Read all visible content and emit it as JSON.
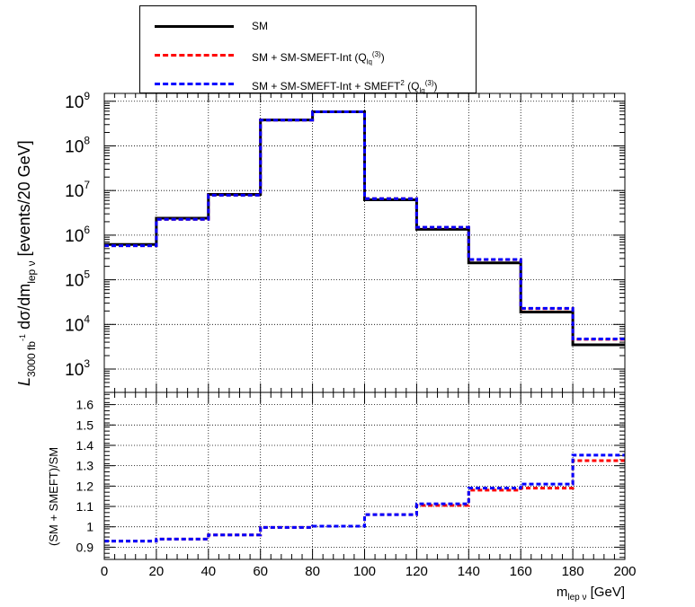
{
  "legend": {
    "sm": "SM",
    "int_prefix": "SM + SM-SMEFT-Int (Q",
    "int_sub": "lq",
    "int_sup": "(3)",
    "int_suffix": ")",
    "full_prefix": "SM + SM-SMEFT-Int + SMEFT",
    "full_pow": "2",
    "full_mid": " (Q",
    "full_sub": "lq",
    "full_sup": "(3)",
    "full_suffix": ")"
  },
  "colors": {
    "sm": "#000000",
    "int": "#ff0000",
    "full": "#0000ff",
    "grid": "#000000"
  },
  "chart_data": [
    {
      "type": "line",
      "panel": "top",
      "scale": "log",
      "ylabel_parts": {
        "L": "L",
        "sub": "3000 fb",
        "sup": "-1",
        "d1": " dσ/dm",
        "sub2": "lep ν",
        "tail": " [events/20 GeV]"
      },
      "bin_edges": [
        0,
        20,
        40,
        60,
        80,
        100,
        120,
        140,
        160,
        180,
        200
      ],
      "xlim": [
        0,
        200
      ],
      "ylim": [
        300,
        1500000000
      ],
      "y_ticks": [
        {
          "value": 1000,
          "base": "10",
          "exp": "3"
        },
        {
          "value": 10000,
          "base": "10",
          "exp": "4"
        },
        {
          "value": 100000,
          "base": "10",
          "exp": "5"
        },
        {
          "value": 1000000,
          "base": "10",
          "exp": "6"
        },
        {
          "value": 10000000,
          "base": "10",
          "exp": "7"
        },
        {
          "value": 100000000,
          "base": "10",
          "exp": "8"
        },
        {
          "value": 1000000000,
          "base": "10",
          "exp": "9"
        }
      ],
      "grid": true,
      "series": [
        {
          "name": "SM",
          "values": [
            620000,
            2400000,
            8200000,
            380000000,
            580000000,
            6200000,
            1350000,
            240000,
            19000,
            3500
          ]
        },
        {
          "name": "SM + SM-SMEFT-Int (Q(3)lq)",
          "values": [
            580000,
            2260000,
            7870000,
            379000000,
            582000000,
            6580000,
            1490000,
            283000,
            22600,
            4640
          ]
        },
        {
          "name": "SM + SM-SMEFT-Int + SMEFT2 (Q(3)lq)",
          "values": [
            580000,
            2260000,
            7870000,
            379000000,
            582000000,
            6580000,
            1500000,
            285000,
            23000,
            4730
          ]
        }
      ]
    },
    {
      "type": "line",
      "panel": "bottom",
      "ylabel": "(SM + SMEFT)/SM",
      "xlabel_parts": {
        "m": "m",
        "sub": "lep ν",
        "tail": " [GeV]"
      },
      "bin_edges": [
        0,
        20,
        40,
        60,
        80,
        100,
        120,
        140,
        160,
        180,
        200
      ],
      "xlim": [
        0,
        200
      ],
      "ylim": [
        0.84,
        1.66
      ],
      "x_ticks": [
        "0",
        "20",
        "40",
        "60",
        "80",
        "100",
        "120",
        "140",
        "160",
        "180",
        "200"
      ],
      "y_ticks": [
        {
          "value": 0.9,
          "label": "0.9"
        },
        {
          "value": 1.0,
          "label": "1"
        },
        {
          "value": 1.1,
          "label": "1.1"
        },
        {
          "value": 1.2,
          "label": "1.2"
        },
        {
          "value": 1.3,
          "label": "1.3"
        },
        {
          "value": 1.4,
          "label": "1.4"
        },
        {
          "value": 1.5,
          "label": "1.5"
        },
        {
          "value": 1.6,
          "label": "1.6"
        }
      ],
      "grid": true,
      "series": [
        {
          "name": "SM + SM-SMEFT-Int (Q(3)lq)",
          "values": [
            0.93,
            0.94,
            0.96,
            0.997,
            1.003,
            1.06,
            1.105,
            1.18,
            1.19,
            1.325
          ]
        },
        {
          "name": "SM + SM-SMEFT-Int + SMEFT2 (Q(3)lq)",
          "values": [
            0.93,
            0.94,
            0.96,
            0.997,
            1.003,
            1.06,
            1.113,
            1.19,
            1.21,
            1.352
          ]
        }
      ]
    }
  ]
}
